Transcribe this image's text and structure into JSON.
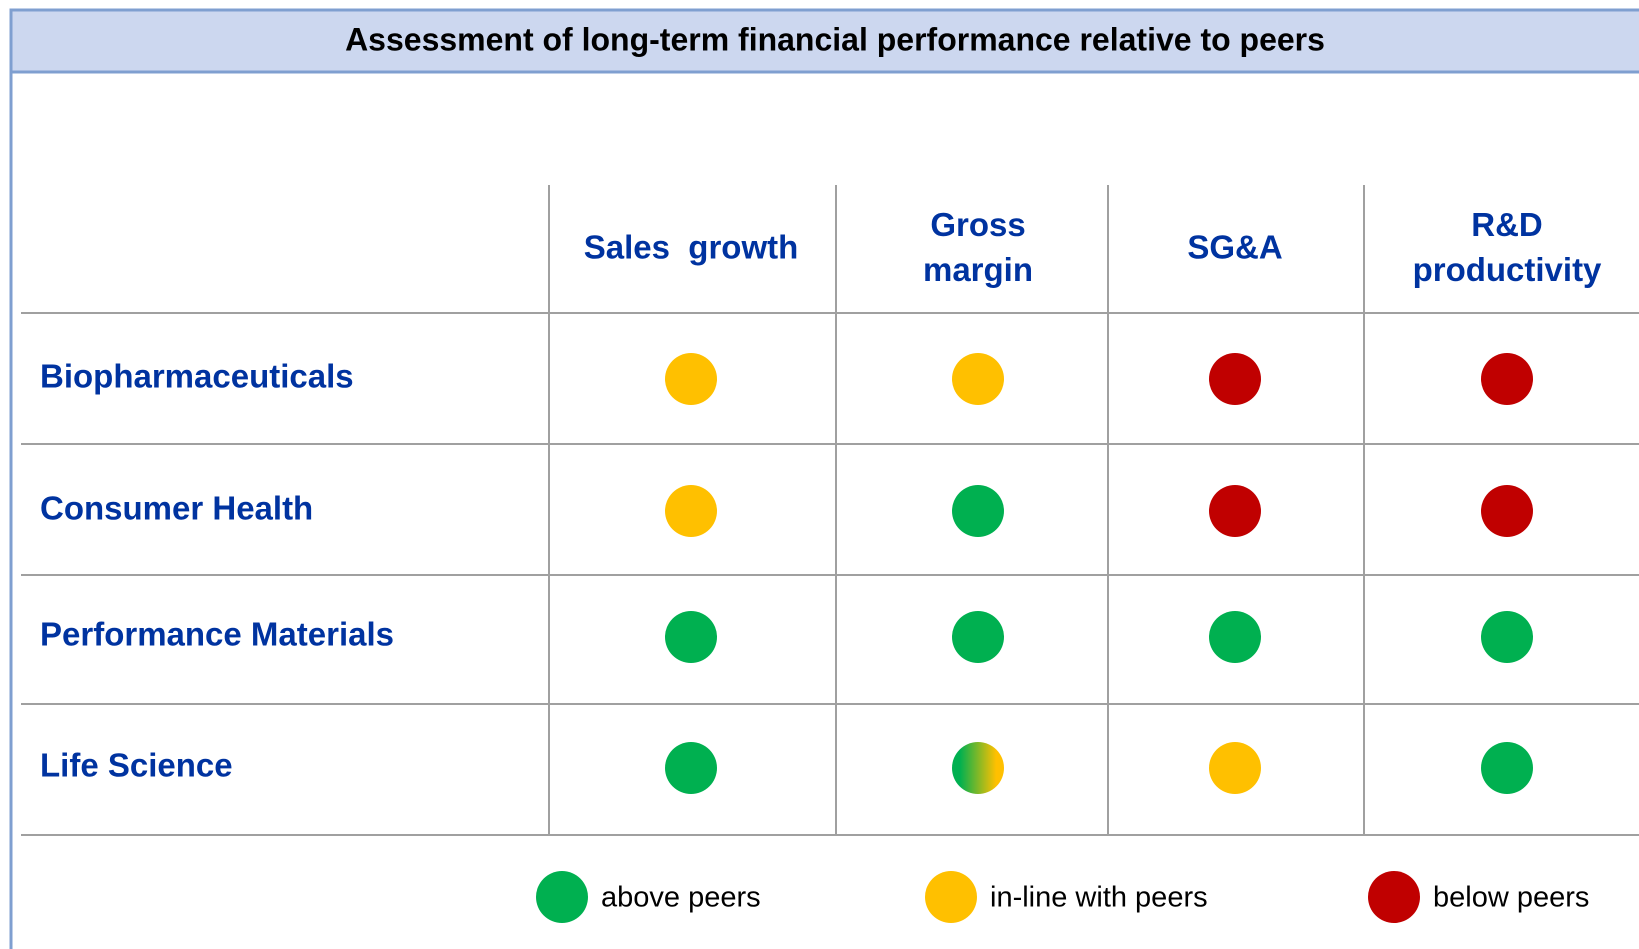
{
  "header": {
    "title": "Assessment of long-term financial performance relative to peers"
  },
  "table": {
    "columns": [
      [
        "Sales  growth"
      ],
      [
        "Gross",
        "margin"
      ],
      [
        "SG&A"
      ],
      [
        "R&D",
        "productivity"
      ]
    ],
    "rows": [
      {
        "label": "Biopharmaceuticals",
        "cells": [
          [
            "#ffc000"
          ],
          [
            "#ffc000"
          ],
          [
            "#c00000"
          ],
          [
            "#c00000"
          ]
        ]
      },
      {
        "label": "Consumer Health",
        "cells": [
          [
            "#ffc000"
          ],
          [
            "#00b050"
          ],
          [
            "#c00000"
          ],
          [
            "#c00000"
          ]
        ]
      },
      {
        "label": "Performance Materials",
        "cells": [
          [
            "#00b050"
          ],
          [
            "#00b050"
          ],
          [
            "#00b050"
          ],
          [
            "#00b050"
          ]
        ]
      },
      {
        "label": "Life Science",
        "cells": [
          [
            "#00b050"
          ],
          [
            "#00b050",
            "#ffc000"
          ],
          [
            "#ffc000"
          ],
          [
            "#00b050"
          ]
        ]
      }
    ]
  },
  "legend": [
    {
      "label": "above peers",
      "color": "#00b050"
    },
    {
      "label": "in-line with peers",
      "color": "#ffc000"
    },
    {
      "label": "below peers",
      "color": "#c00000"
    }
  ]
}
